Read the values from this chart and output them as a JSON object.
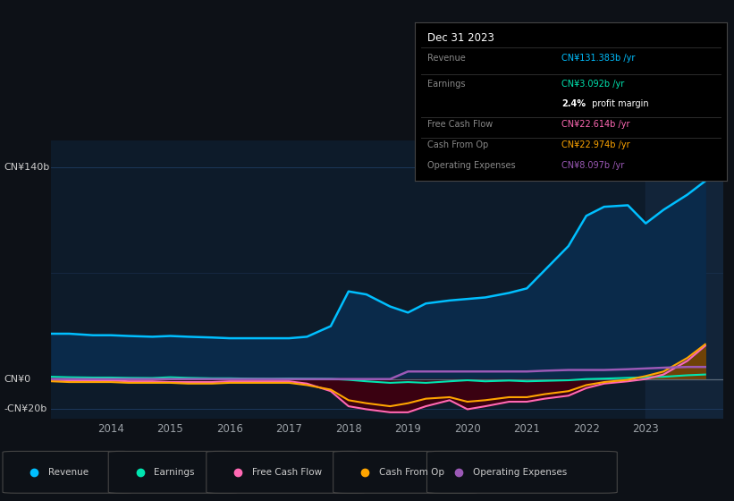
{
  "bg_color": "#0d1117",
  "plot_bg_color": "#0d1b2a",
  "grid_color": "#1e3a5f",
  "text_color": "#9aa0a6",
  "years": [
    2013.0,
    2013.3,
    2013.7,
    2014.0,
    2014.3,
    2014.7,
    2015.0,
    2015.3,
    2015.7,
    2016.0,
    2016.3,
    2016.7,
    2017.0,
    2017.3,
    2017.7,
    2018.0,
    2018.3,
    2018.7,
    2019.0,
    2019.3,
    2019.7,
    2020.0,
    2020.3,
    2020.7,
    2021.0,
    2021.3,
    2021.7,
    2022.0,
    2022.3,
    2022.7,
    2023.0,
    2023.3,
    2023.7,
    2024.0
  ],
  "revenue": [
    30,
    30,
    29,
    29,
    28.5,
    28,
    28.5,
    28,
    27.5,
    27,
    27,
    27,
    27,
    28,
    35,
    58,
    56,
    48,
    44,
    50,
    52,
    53,
    54,
    57,
    60,
    72,
    88,
    108,
    114,
    115,
    103,
    112,
    122,
    131
  ],
  "earnings": [
    1.5,
    1.2,
    1.0,
    1.0,
    0.8,
    0.7,
    1.2,
    0.8,
    0.5,
    0.5,
    0.3,
    0.2,
    0.3,
    0.2,
    0.1,
    -0.5,
    -1.5,
    -2.5,
    -2.0,
    -2.5,
    -1.5,
    -0.8,
    -1.5,
    -1.0,
    -1.5,
    -1.2,
    -0.8,
    0,
    0.3,
    0.8,
    1.2,
    1.5,
    2.5,
    3.0
  ],
  "free_cash_flow": [
    -0.5,
    -0.8,
    -1.0,
    -1.0,
    -1.5,
    -1.5,
    -2.0,
    -2.0,
    -2.0,
    -1.5,
    -1.5,
    -1.5,
    -1.5,
    -3,
    -8,
    -18,
    -20,
    -22,
    -22,
    -18,
    -14,
    -20,
    -18,
    -15,
    -15,
    -13,
    -11,
    -6,
    -3,
    -1.5,
    0,
    3,
    12,
    22
  ],
  "cash_from_op": [
    -1.5,
    -2.0,
    -2.0,
    -2.0,
    -2.5,
    -2.5,
    -2.5,
    -3.0,
    -3.0,
    -2.5,
    -2.5,
    -2.5,
    -2.5,
    -4,
    -7,
    -14,
    -16,
    -18,
    -16,
    -13,
    -12,
    -15,
    -14,
    -12,
    -12,
    -10,
    -8,
    -4,
    -2,
    -0.5,
    2,
    5,
    14,
    23
  ],
  "operating_expenses": [
    0,
    0,
    0,
    0,
    0,
    0,
    0,
    0,
    0,
    0,
    0,
    0,
    0,
    0,
    0,
    0,
    0,
    0,
    5,
    5,
    5,
    5,
    5,
    5,
    5,
    5.5,
    6,
    6,
    6,
    6.5,
    7,
    7.5,
    8,
    8
  ],
  "revenue_color": "#00bfff",
  "earnings_color": "#00e5b0",
  "free_cash_flow_color": "#ff69b4",
  "cash_from_op_color": "#ffa500",
  "operating_expenses_color": "#9b59b6",
  "revenue_fill": "#0a2a4a",
  "neg_fill": "#3d0010",
  "cash_pos_fill": "#7a4500",
  "cash_gray_fill": "#3a3a5a",
  "ylabel_top": "CN¥140b",
  "ylabel_zero": "CN¥0",
  "ylabel_neg": "-CN¥20b",
  "ylim_min": -26,
  "ylim_max": 158,
  "xlim_min": 2013.0,
  "xlim_max": 2024.3,
  "tooltip_title": "Dec 31 2023",
  "tooltip_rows": [
    {
      "label": "Revenue",
      "value": "CN¥131.383b /yr",
      "value_color": "#00bfff"
    },
    {
      "label": "Earnings",
      "value": "CN¥3.092b /yr",
      "value_color": "#00e5b0"
    },
    {
      "label": "",
      "value": "2.4% profit margin",
      "value_color": "#ffffff"
    },
    {
      "label": "Free Cash Flow",
      "value": "CN¥22.614b /yr",
      "value_color": "#ff69b4"
    },
    {
      "label": "Cash From Op",
      "value": "CN¥22.974b /yr",
      "value_color": "#ffa500"
    },
    {
      "label": "Operating Expenses",
      "value": "CN¥8.097b /yr",
      "value_color": "#9b59b6"
    }
  ],
  "legend_items": [
    {
      "label": "Revenue",
      "color": "#00bfff"
    },
    {
      "label": "Earnings",
      "color": "#00e5b0"
    },
    {
      "label": "Free Cash Flow",
      "color": "#ff69b4"
    },
    {
      "label": "Cash From Op",
      "color": "#ffa500"
    },
    {
      "label": "Operating Expenses",
      "color": "#9b59b6"
    }
  ],
  "x_ticks": [
    2014,
    2015,
    2016,
    2017,
    2018,
    2019,
    2020,
    2021,
    2022,
    2023
  ],
  "highlight_x_start": 2023.0
}
